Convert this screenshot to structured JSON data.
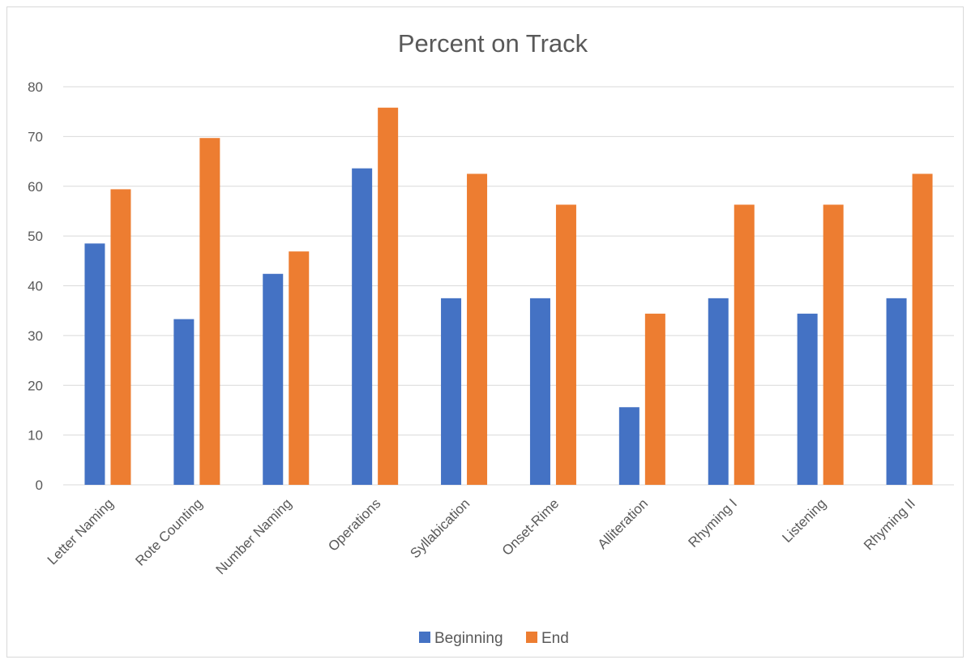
{
  "chart_data": {
    "type": "bar",
    "title": "Percent on Track",
    "xlabel": "",
    "ylabel": "",
    "ylim": [
      0,
      80
    ],
    "ytick_step": 10,
    "grid": true,
    "legend_position": "bottom",
    "categories": [
      "Letter Naming",
      "Rote Counting",
      "Number Naming",
      "Operations",
      "Syllabication",
      "Onset-Rime",
      "Alliteration",
      "Rhyming I",
      "Listening",
      "Rhyming II"
    ],
    "series": [
      {
        "name": "Beginning",
        "color": "#4472c4",
        "values": [
          48.5,
          33.3,
          42.4,
          63.6,
          37.5,
          37.5,
          15.6,
          37.5,
          34.4,
          37.5
        ]
      },
      {
        "name": "End",
        "color": "#ed7d31",
        "values": [
          59.4,
          69.7,
          46.9,
          75.8,
          62.5,
          56.3,
          34.4,
          56.3,
          56.3,
          62.5
        ]
      }
    ]
  }
}
